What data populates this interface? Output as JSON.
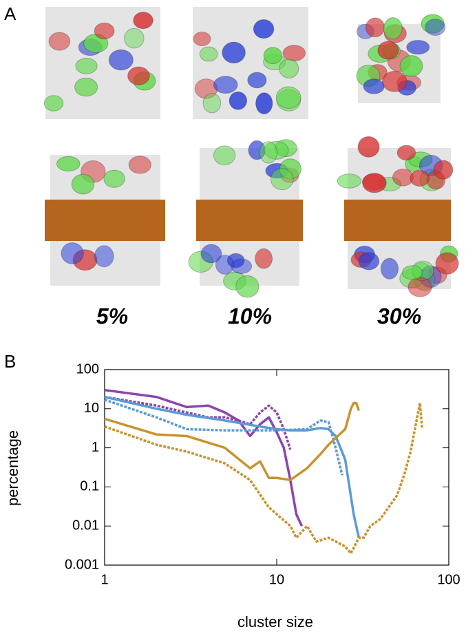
{
  "panel_a": {
    "label": "A",
    "captions": [
      "5%",
      "10%",
      "30%"
    ]
  },
  "panel_b_label": "B",
  "chart_data": {
    "type": "line",
    "xlabel": "cluster size",
    "ylabel": "percentage",
    "xscale": "log",
    "yscale": "log",
    "xlim": [
      1,
      100
    ],
    "ylim": [
      0.001,
      100
    ],
    "xticks": [
      1,
      10,
      100
    ],
    "yticks": [
      0.001,
      0.01,
      0.1,
      1,
      10,
      100
    ],
    "series": [
      {
        "color": "#8b44ac",
        "dashed": false,
        "x": [
          1,
          2,
          3,
          4,
          5,
          6,
          7,
          8,
          9,
          10,
          11,
          12,
          13,
          14
        ],
        "values": [
          30,
          20,
          11,
          12,
          8,
          5,
          2,
          4,
          6,
          2.5,
          1,
          0.15,
          0.02,
          0.01
        ]
      },
      {
        "color": "#8b44ac",
        "dashed": true,
        "x": [
          1,
          2,
          3,
          4,
          5,
          6,
          7,
          8,
          9,
          10,
          11,
          12
        ],
        "values": [
          20,
          12,
          8,
          6,
          6,
          5,
          4,
          8,
          12,
          8,
          3,
          0.9
        ]
      },
      {
        "color": "#5b9bd5",
        "dashed": false,
        "x": [
          1,
          2,
          3,
          5,
          8,
          10,
          12,
          15,
          18,
          20,
          22,
          25,
          28,
          30
        ],
        "values": [
          20,
          10,
          7,
          5,
          3.5,
          3,
          2.8,
          2.8,
          3.2,
          3,
          2,
          0.5,
          0.02,
          0.005
        ]
      },
      {
        "color": "#5b9bd5",
        "dashed": true,
        "x": [
          1,
          2,
          3,
          5,
          10,
          15,
          18,
          20,
          22,
          24
        ],
        "values": [
          17,
          6,
          3,
          2.8,
          2.8,
          3,
          5,
          4.5,
          1,
          0.2
        ]
      },
      {
        "color": "#c8932e",
        "dashed": false,
        "x": [
          1,
          2,
          3,
          5,
          7,
          8,
          9,
          10,
          12,
          15,
          18,
          20,
          25,
          27,
          28,
          29,
          30
        ],
        "values": [
          5.5,
          2.2,
          2,
          1,
          0.3,
          0.45,
          0.17,
          0.17,
          0.15,
          0.3,
          0.7,
          1.2,
          3,
          10,
          14,
          14,
          9
        ]
      },
      {
        "color": "#c8932e",
        "dashed": true,
        "x": [
          1,
          2,
          3,
          5,
          7,
          9,
          10,
          12,
          13,
          15,
          17,
          20,
          25,
          27,
          30,
          32,
          35,
          40,
          50,
          55,
          60,
          65,
          68,
          70
        ],
        "values": [
          3.5,
          1.2,
          0.8,
          0.4,
          0.15,
          0.03,
          0.02,
          0.01,
          0.005,
          0.01,
          0.004,
          0.005,
          0.003,
          0.002,
          0.005,
          0.005,
          0.01,
          0.015,
          0.06,
          0.2,
          0.8,
          5,
          14,
          3
        ]
      }
    ]
  }
}
